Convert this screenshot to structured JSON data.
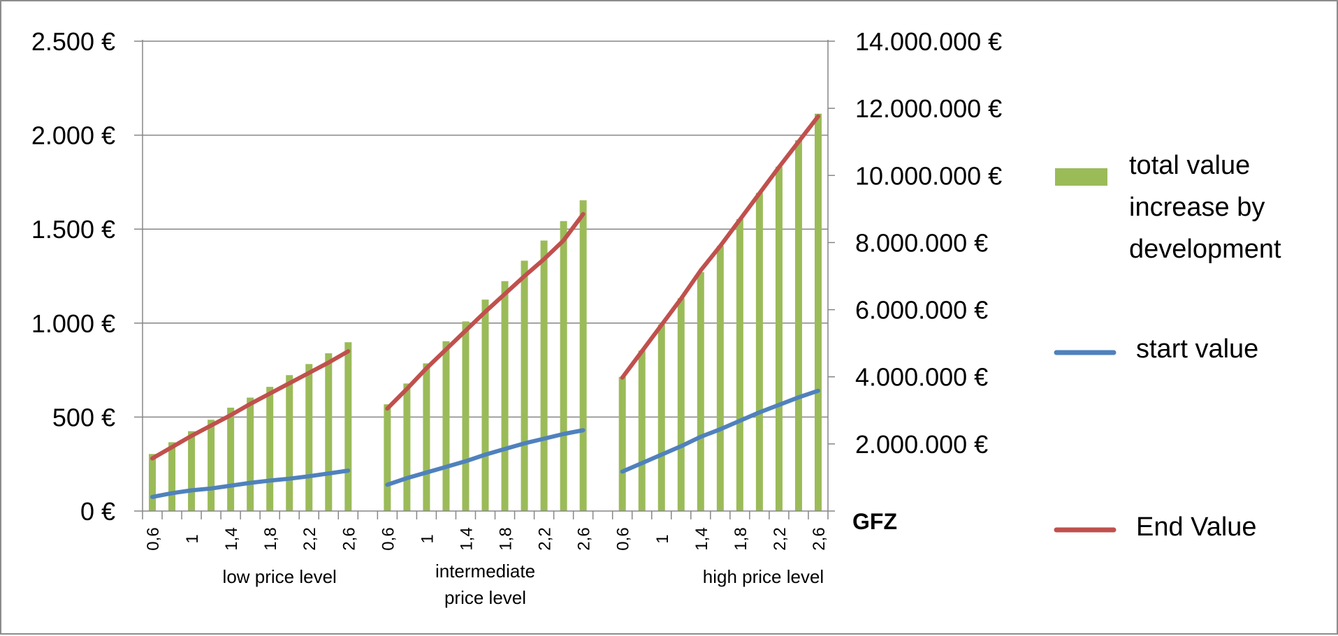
{
  "chart_data": {
    "type": "bar",
    "x_tick_labels": [
      "0,6",
      "",
      "1",
      "",
      "1,4",
      "",
      "1,8",
      "",
      "2,2",
      "",
      "2,6"
    ],
    "x_axis_label": "GFZ",
    "groups": [
      {
        "label_lines": [
          "low price level"
        ],
        "values_left": {
          "start value": [
            75,
            95,
            110,
            120,
            135,
            150,
            162,
            172,
            185,
            200,
            215
          ],
          "End Value": [
            280,
            340,
            400,
            455,
            510,
            570,
            625,
            680,
            735,
            790,
            850
          ]
        },
        "values_right": {
          "total value increase by development": [
            1700000,
            2050000,
            2380000,
            2720000,
            3080000,
            3380000,
            3700000,
            4050000,
            4380000,
            4700000,
            5030000
          ]
        }
      },
      {
        "label_lines": [
          "intermediate",
          "price level"
        ],
        "values_left": {
          "start value": [
            140,
            175,
            205,
            235,
            265,
            300,
            330,
            360,
            385,
            410,
            430
          ],
          "End Value": [
            545,
            650,
            760,
            860,
            960,
            1060,
            1155,
            1250,
            1340,
            1440,
            1580
          ]
        },
        "values_right": {
          "total value increase by development": [
            3180000,
            3800000,
            4400000,
            5060000,
            5650000,
            6300000,
            6850000,
            7460000,
            8060000,
            8640000,
            9260000
          ]
        }
      },
      {
        "label_lines": [
          "high price level"
        ],
        "values_left": {
          "start value": [
            210,
            255,
            300,
            345,
            395,
            435,
            480,
            525,
            565,
            605,
            640
          ],
          "End Value": [
            710,
            850,
            990,
            1130,
            1280,
            1410,
            1550,
            1690,
            1830,
            1965,
            2100
          ]
        },
        "values_right": {
          "total value increase by development": [
            4000000,
            4780000,
            5560000,
            6340000,
            7120000,
            7900000,
            8700000,
            9480000,
            10260000,
            11050000,
            11840000
          ]
        }
      }
    ],
    "left_axis": {
      "ylim": [
        0,
        2500
      ],
      "ticks": [
        0,
        500,
        1000,
        1500,
        2000,
        2500
      ],
      "tick_labels": [
        "0 €",
        "500 €",
        "1.000 €",
        "1.500 €",
        "2.000 €",
        "2.500 €"
      ]
    },
    "right_axis": {
      "ylim": [
        0,
        14000000
      ],
      "ticks": [
        2000000,
        4000000,
        6000000,
        8000000,
        10000000,
        12000000,
        14000000
      ],
      "tick_labels": [
        "2.000.000 €",
        "4.000.000 €",
        "6.000.000 €",
        "8.000.000 €",
        "10.000.000 €",
        "12.000.000 €",
        "14.000.000 €"
      ]
    },
    "series": [
      {
        "name": "total value increase by development",
        "kind": "bar",
        "axis": "right",
        "color": "#9bbb59",
        "legend_lines": [
          "total value",
          "increase by",
          "development"
        ]
      },
      {
        "name": "start value",
        "kind": "line",
        "axis": "left",
        "color": "#4f81bd",
        "legend_lines": [
          " start value"
        ]
      },
      {
        "name": "End Value",
        "kind": "line",
        "axis": "left",
        "color": "#c0504d",
        "legend_lines": [
          " End Value"
        ]
      }
    ],
    "grid": true,
    "legend_position": "right"
  }
}
